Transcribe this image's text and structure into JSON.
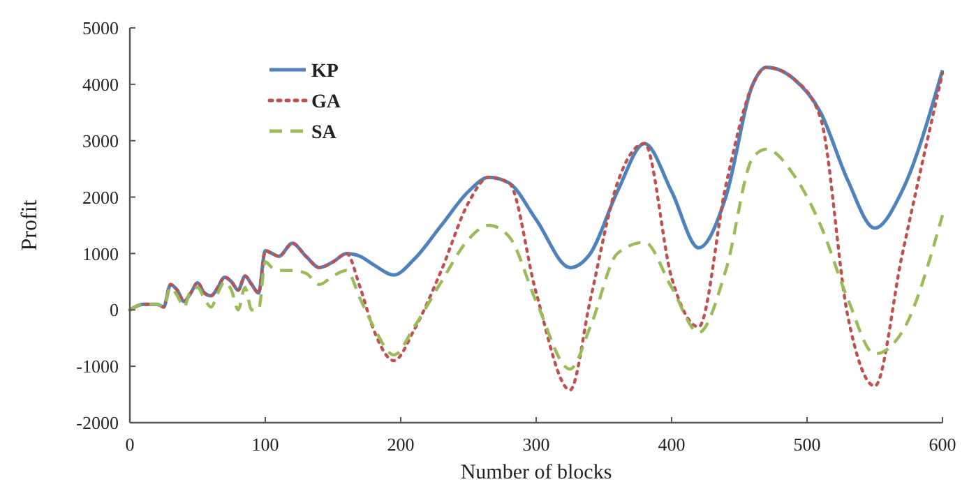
{
  "chart_data": {
    "type": "line",
    "xlabel": "Number of blocks",
    "ylabel": "Profit",
    "x": [
      0,
      10,
      20,
      25,
      30,
      35,
      40,
      45,
      50,
      55,
      60,
      65,
      70,
      75,
      80,
      85,
      90,
      95,
      100,
      105,
      110,
      120,
      130,
      140,
      150,
      160,
      170,
      180,
      195,
      210,
      230,
      250,
      265,
      280,
      300,
      325,
      340,
      360,
      380,
      400,
      420,
      440,
      460,
      470,
      490,
      510,
      530,
      550,
      570,
      600
    ],
    "series": [
      {
        "name": "KP",
        "color": "#4f81bd",
        "line_style": "solid",
        "values": [
          0,
          100,
          100,
          50,
          450,
          350,
          150,
          300,
          480,
          300,
          250,
          400,
          580,
          500,
          350,
          600,
          450,
          300,
          1050,
          1000,
          950,
          1180,
          950,
          750,
          850,
          1000,
          950,
          800,
          620,
          900,
          1500,
          2100,
          2350,
          2250,
          1600,
          750,
          1000,
          2100,
          2950,
          2100,
          1100,
          2000,
          4000,
          4300,
          4100,
          3500,
          2300,
          1450,
          2100,
          4250
        ]
      },
      {
        "name": "GA",
        "color": "#c0504d",
        "line_style": "dotted",
        "values": [
          0,
          100,
          100,
          50,
          450,
          350,
          150,
          300,
          480,
          300,
          250,
          400,
          580,
          500,
          350,
          600,
          450,
          300,
          1050,
          1000,
          950,
          1180,
          950,
          750,
          850,
          1000,
          400,
          -350,
          -900,
          -350,
          700,
          1900,
          2350,
          2250,
          300,
          -1420,
          180,
          2250,
          2950,
          570,
          -300,
          2200,
          4000,
          4300,
          4100,
          3400,
          -100,
          -1350,
          950,
          4200
        ]
      },
      {
        "name": "SA",
        "color": "#9bbb59",
        "line_style": "dashed",
        "values": [
          0,
          100,
          100,
          50,
          400,
          250,
          50,
          350,
          400,
          200,
          50,
          300,
          500,
          350,
          0,
          400,
          0,
          0,
          850,
          750,
          700,
          700,
          650,
          450,
          600,
          700,
          200,
          -300,
          -800,
          -300,
          500,
          1250,
          1500,
          1300,
          150,
          -1050,
          -300,
          1000,
          1200,
          400,
          -400,
          700,
          2700,
          2850,
          2400,
          1500,
          200,
          -780,
          -400,
          1680
        ]
      }
    ],
    "xlim": [
      0,
      600
    ],
    "xticks": [
      0,
      100,
      200,
      300,
      400,
      500,
      600
    ],
    "ylim": [
      -2000,
      5000
    ],
    "yticks": [
      -2000,
      -1000,
      0,
      1000,
      2000,
      3000,
      4000,
      5000
    ],
    "grid": false,
    "legend": "top left"
  }
}
